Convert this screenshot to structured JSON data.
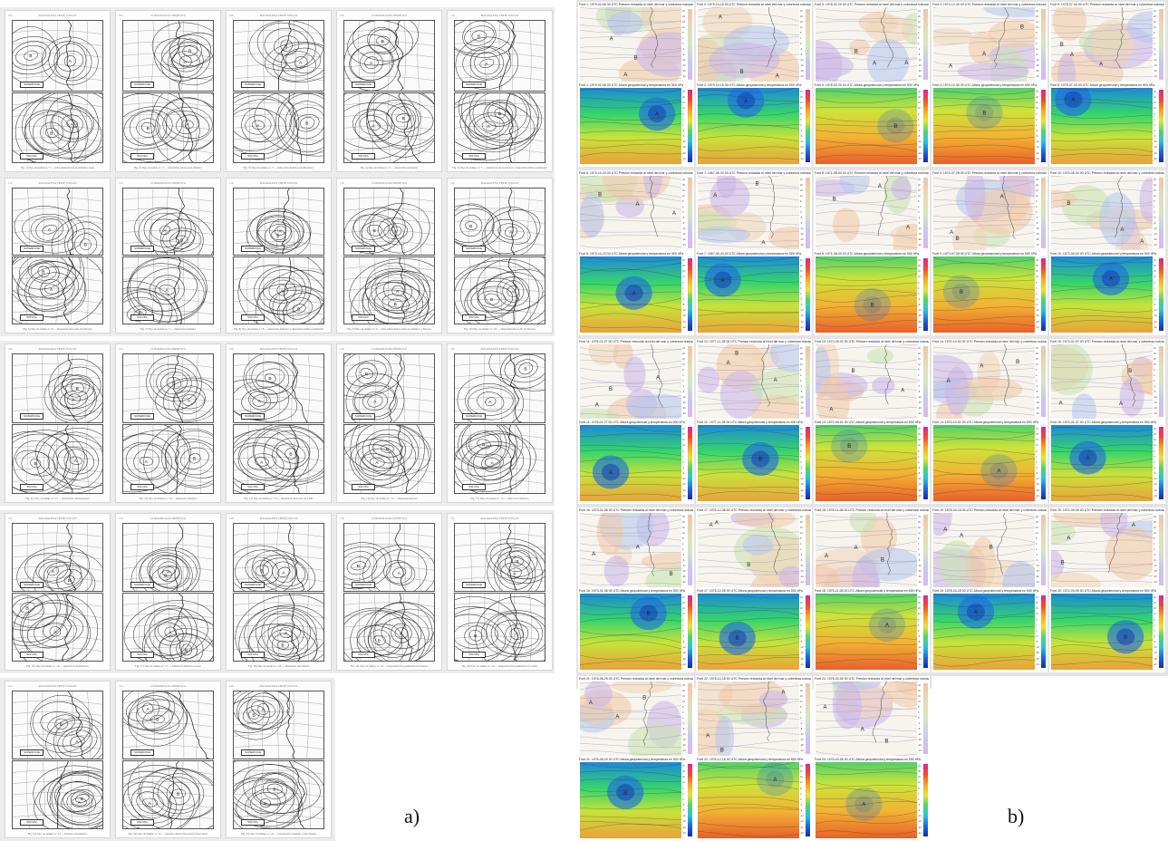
{
  "labels": {
    "a": "a)",
    "b": "b)"
  },
  "panel_a": {
    "header_left": "CLIMATOLOGÍA SINÓPTICA",
    "header_right": "MAGDALENA VERTE TOLLOT",
    "box_surface": "SUPERFICIE",
    "box_height": "500 hPa",
    "rows": [
      {
        "captions": [
          "Fig. 1) Tipo de tiempo n.º 1 — Alta peninsular en el Atlántico norte",
          "Fig. 2) Tipo de tiempo n.º 2 — Anticiclón subtropical atlántico",
          "Fig. 3) Tipo de tiempo n.º 3 — Anticiclón atlántico-mediterráneo",
          "Fig. 4) Tipo de tiempo n.º 4 — Anticiclón peninsular",
          "Fig. 5) Tipo de tiempo n.º 5 — Anticiclón de las Azores y depresión térmica peninsular"
        ]
      },
      {
        "captions": [
          "Fig. 6) Tipo de tiempo n.º 6 — Depresión del Golfo de Vizcaya",
          "Fig. 7) Tipo de tiempo n.º 7 — Depresión británica",
          "Fig. 8) Tipo de tiempo n.º 8 — Anticiclón atlántico y depresión térmica peninsular",
          "Fig. 9) Tipo de tiempo n.º 9 — Alta anticiclónica sobre el Atlántico y Europa",
          "Fig. 10) Tipo de tiempo n.º 10 — Depresión del Golfo de Vizcaya"
        ]
      },
      {
        "captions": [
          "Fig. 11) Tipo de tiempo n.º 11 — Anticiclón centroeuropeo",
          "Fig. 12) Tipo de tiempo n.º 12 — Depresión atlántica",
          "Fig. 13) Tipo de tiempo n.º 13 — Depresión del Golfo de Cádiz",
          "Fig. 14) Tipo de tiempo n.º 14 — Depresión Azores",
          "Fig. 15) Tipo de tiempo n.º 15 — Anticiclón atlántico"
        ]
      },
      {
        "captions": [
          "Fig. 16) Tipo de tiempo n.º 16 — Anticiclón escandinavo",
          "Fig. 17) Tipo de tiempo n.º 17 — Anticiclón atlántico escaso",
          "Fig. 18) Tipo de tiempo n.º 18 — Depresión fría aislada",
          "Fig. 19) Tipo de tiempo n.º 19 — Depresión fría peninsular de invierno",
          "Fig. 20) Tipo de tiempo n.º 20 — Depresión fría peninsular de verano"
        ]
      },
      {
        "captions": [
          "Fig. 21) Tipo de tiempo n.º 21 — Pantano barométrico",
          "Fig. 22) Tipo de tiempo n.º 22 — Pantano, Anticiclón zonal e intercalado",
          "Fig. 23) Tipo de tiempo n.º 23 — Circulación ondulada o tipo blando"
        ]
      }
    ]
  },
  "panel_b": {
    "top_title": "Presion reducida al nivel del mar y cobertura nubosa",
    "bottom_title": "Altura geopotencial y temperatura en 500 hPa",
    "scale_ticks": [
      "24",
      "20",
      "16",
      "12",
      "8",
      "4",
      "0",
      "-4",
      "-8",
      "-12",
      "-16",
      "-20",
      "-24"
    ],
    "types": [
      {
        "id": "Font 1",
        "top_date": "1979-02-06 00 UTC",
        "bottom_date": "1979-02-06 00 UTC"
      },
      {
        "id": "Font 2",
        "top_date": "1979-10-15 00 UTC",
        "bottom_date": "1979-10-15 00 UTC"
      },
      {
        "id": "Font 3",
        "top_date": "1978-02-20 00 UTC",
        "bottom_date": "1978-02-20 00 UTC"
      },
      {
        "id": "Font 4",
        "top_date": "1974-12-30 00 UTC",
        "bottom_date": "1974-12-30 00 UTC"
      },
      {
        "id": "Font 5",
        "top_date": "1975-07-04 00 UTC",
        "bottom_date": "1975-07-04 00 UTC"
      },
      {
        "id": "Font 6",
        "top_date": "1970-10-20 00 UTC",
        "bottom_date": "1970-10-20 00 UTC"
      },
      {
        "id": "Font 7",
        "top_date": "1967-05-20 00 UTC",
        "bottom_date": "1967-05-20 00 UTC"
      },
      {
        "id": "Font 8",
        "top_date": "1971-08-03 00 UTC",
        "bottom_date": "1971-08-03 00 UTC"
      },
      {
        "id": "Font 9",
        "top_date": "1970-07-28 00 UTC",
        "bottom_date": "1970-07-28 00 UTC"
      },
      {
        "id": "Font 10",
        "top_date": "1973-06-04 00 UTC",
        "bottom_date": "1973-06-04 00 UTC"
      },
      {
        "id": "Font 11",
        "top_date": "1975-02-27 00 UTC",
        "bottom_date": "1975-02-27 00 UTC"
      },
      {
        "id": "Font 12",
        "top_date": "1977-11-28 00 UTC",
        "bottom_date": "1977-11-28 00 UTC"
      },
      {
        "id": "Font 13",
        "top_date": "1972-09-02 00 UTC",
        "bottom_date": "1972-09-02 00 UTC"
      },
      {
        "id": "Font 14",
        "top_date": "1970-10-02 00 UTC",
        "bottom_date": "1970-10-02 00 UTC"
      },
      {
        "id": "Font 15",
        "top_date": "1973-01-07 00 UTC",
        "bottom_date": "1973-01-07 00 UTC"
      },
      {
        "id": "Font 16",
        "top_date": "1973-01-06 00 UTC",
        "bottom_date": "1973-01-06 00 UTC"
      },
      {
        "id": "Font 17",
        "top_date": "1976-12-08 00 UTC",
        "bottom_date": "1976-12-08 00 UTC"
      },
      {
        "id": "Font 18",
        "top_date": "1975-11-08 00 UTC",
        "bottom_date": "1975-11-08 00 UTC"
      },
      {
        "id": "Font 19",
        "top_date": "1978-04-18 00 UTC",
        "bottom_date": "1978-04-18 00 UTC"
      },
      {
        "id": "Font 20",
        "top_date": "1972-09-05 00 UTC",
        "bottom_date": "1972-09-05 00 UTC"
      },
      {
        "id": "Font 21",
        "top_date": "1976-06-29 00 UTC",
        "bottom_date": "1976-06-29 00 UTC"
      },
      {
        "id": "Font 22",
        "top_date": "1976-12-18 00 UTC",
        "bottom_date": "1976-12-18 00 UTC"
      },
      {
        "id": "Font 23",
        "top_date": "1976-02-05 00 UTC",
        "bottom_date": "1976-02-05 00 UTC"
      }
    ]
  }
}
